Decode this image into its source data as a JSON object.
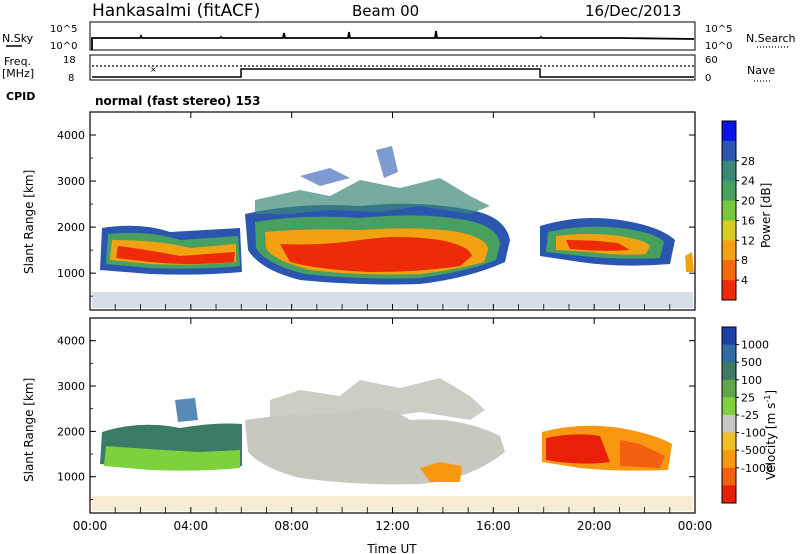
{
  "header": {
    "station": "Hankasalmi (fitACF)",
    "beam": "Beam 00",
    "date": "16/Dec/2013"
  },
  "noise_panel": {
    "left_label": "N.Sky",
    "right_label": "N.Search",
    "left_ticks": [
      "10^5",
      "10^0"
    ],
    "right_ticks": [
      "10^5",
      "10^0"
    ]
  },
  "freq_panel": {
    "left_label_1": "Freq.",
    "left_label_2": "[MHz]",
    "left_ticks": [
      "18",
      "8"
    ],
    "right_ticks": [
      "60",
      "0"
    ],
    "right_label": "Nave",
    "cpid_label": "CPID",
    "cpid_text": "normal (fast stereo) 153"
  },
  "chart_data": [
    {
      "type": "heatmap",
      "title": "Power",
      "ylabel": "Slant Range [km]",
      "xlabel": "Time UT",
      "ylim": [
        200,
        4500
      ],
      "xlim": [
        0,
        24
      ],
      "y_ticks": [
        "1000",
        "2000",
        "3000",
        "4000"
      ],
      "colorbar_label": "Power [dB]",
      "colorbar_ticks": [
        "4",
        "8",
        "12",
        "16",
        "20",
        "24",
        "28"
      ],
      "colorbar_colors": [
        "#0a14e6",
        "#2a56b0",
        "#3c8878",
        "#47a060",
        "#76c83c",
        "#d8cc20",
        "#f2a210",
        "#f36b0c",
        "#ee2b09"
      ],
      "colors": {
        "strong": "#ee2b09",
        "mid_high": "#f36b0c",
        "mid": "#e8a11a",
        "low": "#5fb448",
        "weak": "#3c8878",
        "weakest": "#2a56b0"
      }
    },
    {
      "type": "heatmap",
      "title": "Velocity",
      "ylabel": "Slant Range [km]",
      "xlabel": "Time UT",
      "ylim": [
        200,
        4500
      ],
      "xlim": [
        0,
        24
      ],
      "y_ticks": [
        "1000",
        "2000",
        "3000",
        "4000"
      ],
      "x_ticks": [
        "00:00",
        "04:00",
        "08:00",
        "12:00",
        "16:00",
        "20:00",
        "00:00"
      ],
      "colorbar_label_main": "Velocity",
      "colorbar_label_unit": "[m s",
      "colorbar_label_exp": "-1",
      "colorbar_label_close": "]",
      "colorbar_ticks": [
        "1000",
        "500",
        "100",
        "25",
        "-25",
        "-100",
        "-500",
        "-1000"
      ],
      "colorbar_colors": [
        "#1f3ea8",
        "#2f6da4",
        "#3b7a64",
        "#5fa84a",
        "#7ed13c",
        "#c8c8c0",
        "#f0c020",
        "#f79810",
        "#f26010",
        "#ea1f0a"
      ],
      "colors": {
        "ground_scatter": "#c8c8c0",
        "toward": "#3b7a64",
        "toward_light": "#7ed13c",
        "away": "#f26010",
        "away_strong": "#ea1f0a"
      }
    }
  ]
}
